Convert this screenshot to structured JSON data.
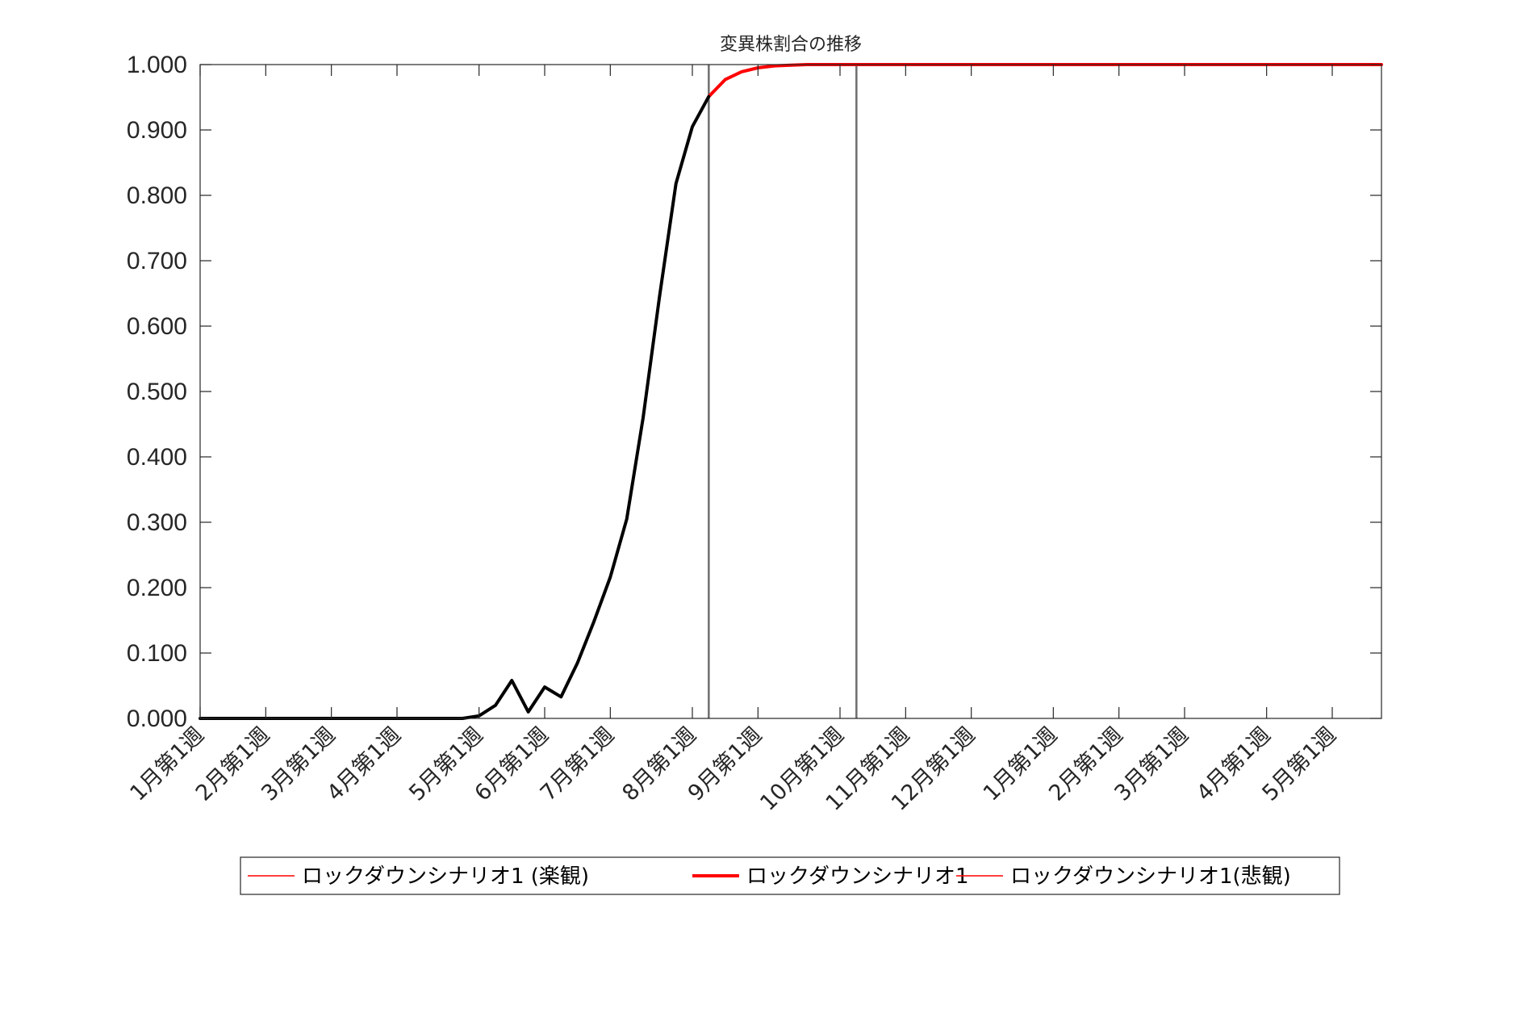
{
  "chart_data": {
    "type": "line",
    "title": "変異株割合の推移",
    "xlabel": "",
    "ylabel": "",
    "ylim": [
      0,
      1
    ],
    "yticks": [
      "0.000",
      "0.100",
      "0.200",
      "0.300",
      "0.400",
      "0.500",
      "0.600",
      "0.700",
      "0.800",
      "0.900",
      "1.000"
    ],
    "x_tick_labels": [
      "1月第1週",
      "2月第1週",
      "3月第1週",
      "4月第1週",
      "5月第1週",
      "6月第1週",
      "7月第1週",
      "8月第1週",
      "9月第1週",
      "10月第1週",
      "11月第1週",
      "12月第1週",
      "1月第1週",
      "2月第1週",
      "3月第1週",
      "4月第1週",
      "5月第1週"
    ],
    "x_tick_weeks": [
      0,
      4,
      8,
      12,
      17,
      21,
      25,
      30,
      34,
      39,
      43,
      47,
      52,
      56,
      60,
      65,
      69
    ],
    "x_range_weeks": [
      0,
      72
    ],
    "vertical_lines_weeks": [
      31,
      40
    ],
    "grid": false,
    "legend_position": "bottom",
    "series": [
      {
        "name": "ロックダウンシナリオ1 (楽観)",
        "color": "#ff0000",
        "style": "thin",
        "x_weeks": [
          31,
          32,
          33,
          34,
          35,
          36,
          37,
          38,
          39,
          40,
          41,
          42,
          44,
          48,
          52,
          56,
          60,
          64,
          68,
          72
        ],
        "values": [
          0.951,
          0.977,
          0.989,
          0.995,
          0.998,
          0.999,
          1.0,
          1.0,
          1.0,
          1.0,
          1.0,
          1.0,
          1.0,
          1.0,
          1.0,
          1.0,
          1.0,
          1.0,
          1.0,
          1.0
        ]
      },
      {
        "name": "ロックダウンシナリオ1",
        "color": "#ff0000",
        "style": "thick",
        "x_weeks": [
          31,
          32,
          33,
          34,
          35,
          36,
          37,
          38,
          39,
          40,
          41,
          42,
          44,
          48,
          52,
          56,
          60,
          64,
          68,
          72
        ],
        "values": [
          0.951,
          0.977,
          0.989,
          0.995,
          0.998,
          0.999,
          1.0,
          1.0,
          1.0,
          1.0,
          1.0,
          1.0,
          1.0,
          1.0,
          1.0,
          1.0,
          1.0,
          1.0,
          1.0,
          1.0
        ]
      },
      {
        "name": "ロックダウンシナリオ1(悲観)",
        "color": "#ff0000",
        "style": "thin",
        "x_weeks": [
          31,
          32,
          33,
          34,
          35,
          36,
          37,
          38,
          39,
          40,
          41,
          42,
          44,
          48,
          52,
          56,
          60,
          64,
          68,
          72
        ],
        "values": [
          0.951,
          0.977,
          0.989,
          0.995,
          0.998,
          0.999,
          1.0,
          1.0,
          1.0,
          1.0,
          1.0,
          1.0,
          1.0,
          1.0,
          1.0,
          1.0,
          1.0,
          1.0,
          1.0,
          1.0
        ]
      },
      {
        "color": "#000000",
        "style": "thick",
        "x_weeks": [
          0,
          4,
          8,
          12,
          15,
          16,
          17,
          18,
          19,
          20,
          21,
          22,
          23,
          24,
          25,
          26,
          27,
          28,
          29,
          30,
          31
        ],
        "values": [
          0.0,
          0.0,
          0.0,
          0.0,
          0.0,
          0.0,
          0.004,
          0.02,
          0.058,
          0.01,
          0.048,
          0.033,
          0.085,
          0.148,
          0.216,
          0.305,
          0.46,
          0.645,
          0.818,
          0.905,
          0.951
        ]
      }
    ]
  }
}
